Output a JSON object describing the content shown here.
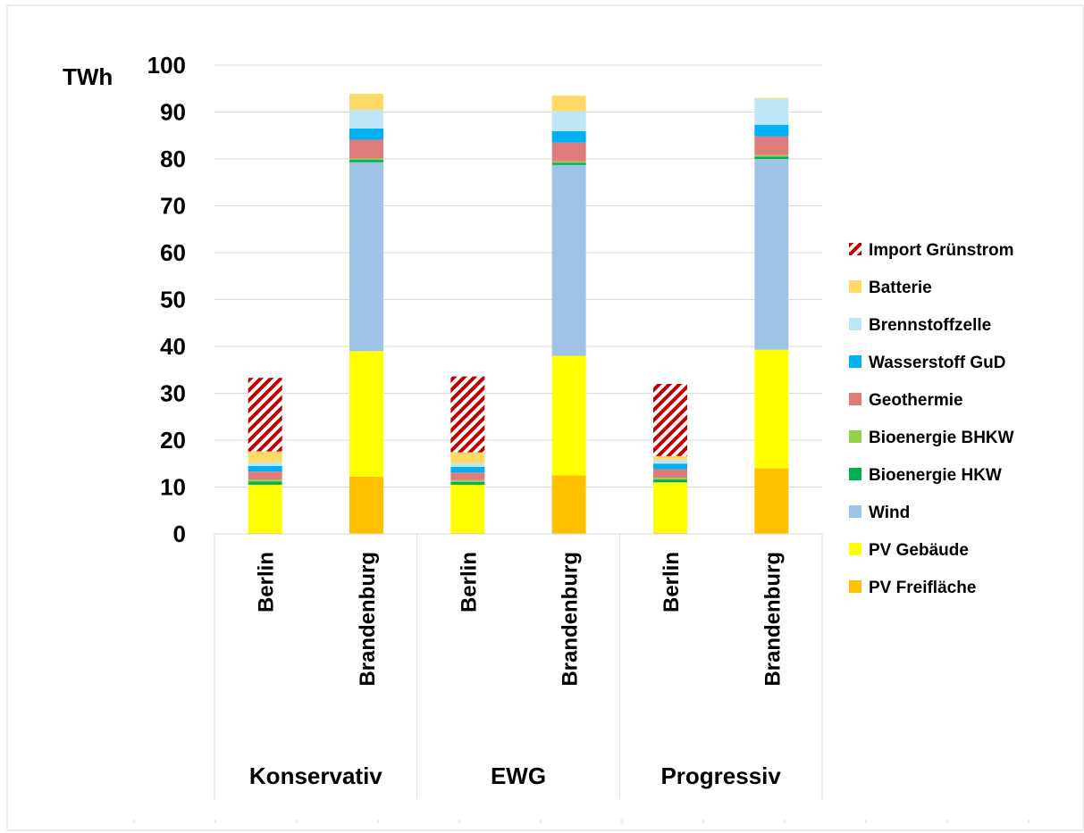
{
  "chart_data": {
    "type": "bar",
    "stacked": true,
    "title": "",
    "ylabel": "TWh",
    "xlabel": "",
    "ylim": [
      0,
      100
    ],
    "yticks": [
      0,
      10,
      20,
      30,
      40,
      50,
      60,
      70,
      80,
      90,
      100
    ],
    "grid": true,
    "legend_position": "right",
    "groups": [
      {
        "label": "Konservativ",
        "categories": [
          "Berlin",
          "Brandenburg"
        ]
      },
      {
        "label": "EWG",
        "categories": [
          "Berlin",
          "Brandenburg"
        ]
      },
      {
        "label": "Progressiv",
        "categories": [
          "Berlin",
          "Brandenburg"
        ]
      }
    ],
    "categories": [
      "Berlin",
      "Brandenburg",
      "Berlin",
      "Brandenburg",
      "Berlin",
      "Brandenburg"
    ],
    "series": [
      {
        "name": "PV Freifläche",
        "color": "#FFC000",
        "pattern": "solid",
        "values": [
          0.2,
          12.2,
          0.2,
          12.5,
          0.2,
          14.0
        ]
      },
      {
        "name": "PV Gebäude",
        "color": "#FFFF00",
        "pattern": "solid",
        "values": [
          10.3,
          26.8,
          10.3,
          25.5,
          10.8,
          25.3
        ]
      },
      {
        "name": "Wind",
        "color": "#9DC3E6",
        "pattern": "solid",
        "values": [
          0.0,
          40.3,
          0.0,
          40.7,
          0.0,
          40.7
        ]
      },
      {
        "name": "Bioenergie HKW",
        "color": "#00B050",
        "pattern": "solid",
        "values": [
          0.7,
          0.5,
          0.6,
          0.5,
          0.6,
          0.5
        ]
      },
      {
        "name": "Bioenergie BHKW",
        "color": "#92D050",
        "pattern": "solid",
        "values": [
          0.4,
          0.3,
          0.4,
          0.3,
          0.4,
          0.3
        ]
      },
      {
        "name": "Geothermie",
        "color": "#E07B7B",
        "pattern": "solid",
        "values": [
          1.7,
          4.0,
          1.6,
          4.0,
          1.8,
          4.0
        ]
      },
      {
        "name": "Wasserstoff GuD",
        "color": "#00B0F0",
        "pattern": "solid",
        "values": [
          1.2,
          2.4,
          1.2,
          2.4,
          1.2,
          2.5
        ]
      },
      {
        "name": "Brennstoffzelle",
        "color": "#BDE6F7",
        "pattern": "solid",
        "values": [
          0.8,
          4.0,
          0.8,
          4.3,
          0.8,
          5.5
        ]
      },
      {
        "name": "Batterie",
        "color": "#FFD966",
        "pattern": "solid",
        "values": [
          2.3,
          3.4,
          2.3,
          3.3,
          0.8,
          0.2
        ]
      },
      {
        "name": "Import Grünstrom",
        "color": "#C00000",
        "pattern": "hatch",
        "values": [
          15.7,
          0.0,
          16.2,
          0.0,
          15.4,
          0.0
        ]
      }
    ]
  }
}
